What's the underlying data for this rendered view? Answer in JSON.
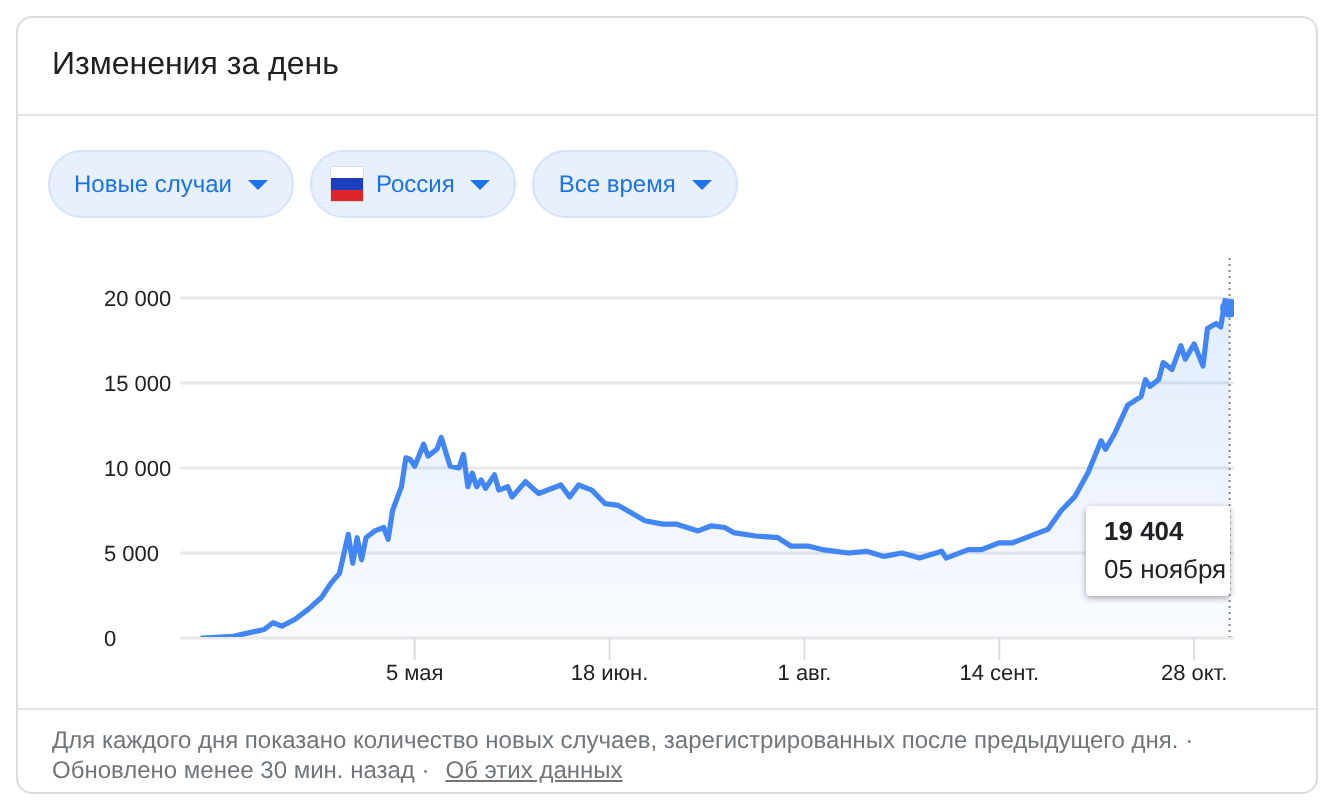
{
  "chart_data": {
    "type": "area",
    "title": "Изменения за день",
    "x": [
      "--03-18",
      "--03-25",
      "--04-01",
      "--04-03",
      "--04-05",
      "--04-08",
      "--04-11",
      "--04-14",
      "--04-16",
      "--04-18",
      "--04-20",
      "--04-21",
      "--04-22",
      "--04-23",
      "--04-24",
      "--04-26",
      "--04-28",
      "--04-29",
      "--04-30",
      "--05-02",
      "--05-03",
      "--05-04",
      "--05-05",
      "--05-07",
      "--05-08",
      "--05-10",
      "--05-11",
      "--05-13",
      "--05-15",
      "--05-16",
      "--05-17",
      "--05-18",
      "--05-19",
      "--05-20",
      "--05-21",
      "--05-23",
      "--05-24",
      "--05-26",
      "--05-27",
      "--05-30",
      "--06-02",
      "--06-07",
      "--06-09",
      "--06-11",
      "--06-14",
      "--06-17",
      "--06-20",
      "--06-26",
      "--06-30",
      "--07-03",
      "--07-08",
      "--07-11",
      "--07-14",
      "--07-16",
      "--07-21",
      "--07-26",
      "--07-29",
      "--08-02",
      "--08-05",
      "--08-11",
      "--08-15",
      "--08-19",
      "--08-23",
      "--08-27",
      "--09-01",
      "--09-02",
      "--09-07",
      "--09-10",
      "--09-14",
      "--09-17",
      "--09-23",
      "--09-25",
      "--09-28",
      "--10-01",
      "--10-04",
      "--10-07",
      "--10-08",
      "--10-10",
      "--10-13",
      "--10-16",
      "--10-17",
      "--10-18",
      "--10-20",
      "--10-21",
      "--10-23",
      "--10-25",
      "--10-26",
      "--10-28",
      "--10-30",
      "--10-31",
      "--11-02",
      "--11-03",
      "--11-04",
      "--11-05"
    ],
    "series": [
      {
        "color": "#4285f4",
        "values": [
          0,
          100,
          500,
          900,
          700,
          1100,
          1700,
          2400,
          3200,
          3800,
          6100,
          4400,
          5900,
          4600,
          5900,
          6300,
          6500,
          5800,
          7500,
          8900,
          10600,
          10500,
          10100,
          11400,
          10700,
          11100,
          11800,
          10100,
          10000,
          10800,
          8900,
          9700,
          8900,
          9300,
          8800,
          9600,
          8700,
          8900,
          8300,
          9200,
          8500,
          9000,
          8300,
          9000,
          8700,
          7900,
          7800,
          6900,
          6700,
          6700,
          6300,
          6600,
          6500,
          6200,
          6000,
          5900,
          5400,
          5400,
          5200,
          5000,
          5100,
          4800,
          5000,
          4700,
          5100,
          4700,
          5200,
          5200,
          5600,
          5600,
          6200,
          6400,
          7500,
          8300,
          9700,
          11600,
          11100,
          12000,
          13700,
          14200,
          15200,
          14800,
          15200,
          16200,
          15800,
          17200,
          16400,
          17300,
          16000,
          18200,
          18500,
          18300,
          19900,
          19404
        ]
      },
      {
        "type": "scatter",
        "color": "#4285f4",
        "marker": "circle",
        "x": [
          "--11-05"
        ],
        "values": [
          19404
        ]
      }
    ],
    "xlim": [
      "--03-13",
      "--11-06"
    ],
    "xticks": [
      {
        "value": "--05-05",
        "label": "5 мая"
      },
      {
        "value": "--06-18",
        "label": "18 июн."
      },
      {
        "value": "--08-01",
        "label": "1 авг."
      },
      {
        "value": "--09-14",
        "label": "14 сент."
      },
      {
        "value": "--10-28",
        "label": "28 окт."
      }
    ],
    "ylim": [
      0,
      20000
    ],
    "yticks": [
      0,
      {
        "value": 5000,
        "label": "5 000"
      },
      {
        "value": 10000,
        "label": "10 000"
      },
      {
        "value": 15000,
        "label": "15 000"
      },
      {
        "value": 20000,
        "label": "20 000"
      }
    ],
    "grid": "y",
    "ref_lines": [
      {
        "axis": "x",
        "value": "--11-05",
        "color": "#80868b",
        "line_style": "dotted"
      }
    ],
    "annotations": [
      "Новые случаи",
      "Россия",
      "Все время",
      "Для каждого дня показано количество новых случаев, зарегистрированных после предыдущего дня. ·",
      "Обновлено менее 30 мин. назад ·",
      "Об этих данных",
      "19 404",
      "05 ноября"
    ]
  }
}
